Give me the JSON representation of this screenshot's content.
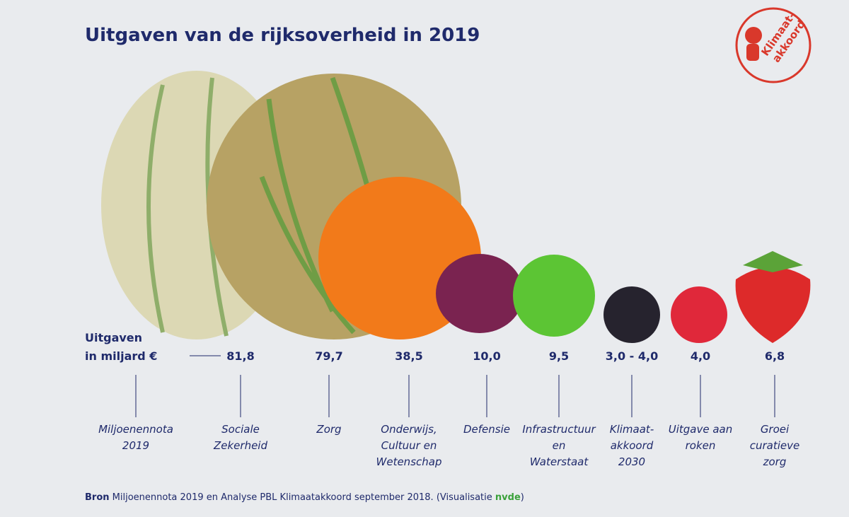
{
  "title": "Uitgaven van de rijksoverheid in 2019",
  "logo": {
    "lines": [
      "Klimaat-",
      "akkoord"
    ]
  },
  "row_label": [
    "Uitgaven",
    "in miljard €"
  ],
  "first_column": {
    "label": [
      "Miljoenennota",
      "2019"
    ]
  },
  "items": [
    {
      "value": "81,8",
      "label": [
        "Sociale",
        "Zekerheid"
      ]
    },
    {
      "value": "79,7",
      "label": [
        "Zorg"
      ]
    },
    {
      "value": "38,5",
      "label": [
        "Onderwijs,",
        "Cultuur en",
        "Wetenschap"
      ]
    },
    {
      "value": "10,0",
      "label": [
        "Defensie"
      ]
    },
    {
      "value": "9,5",
      "label": [
        "Infrastructuur",
        "en",
        "Waterstaat"
      ]
    },
    {
      "value": "3,0 - 4,0",
      "label": [
        "Klimaat-",
        "akkoord",
        "2030"
      ]
    },
    {
      "value": "4,0",
      "label": [
        "Uitgave aan",
        "roken"
      ]
    },
    {
      "value": "6,8",
      "label": [
        "Groei",
        "curatieve",
        "zorg"
      ]
    }
  ],
  "source": {
    "bold": "Bron",
    "text": "Miljoenennota 2019 en Analyse PBL Klimaatakkoord september 2018. (Visualisatie",
    "brand": "nvde",
    "close": ")"
  }
}
